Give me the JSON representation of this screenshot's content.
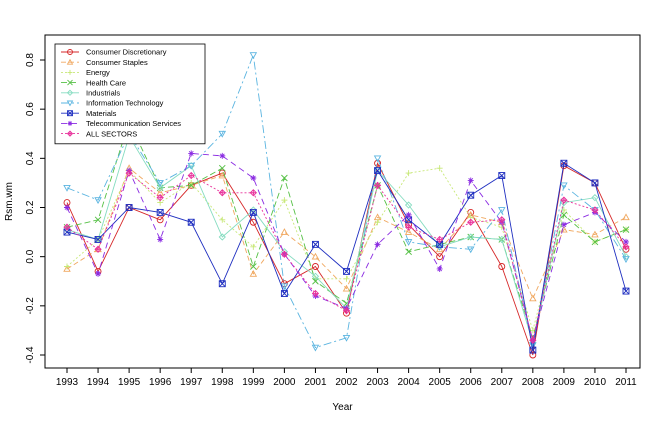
{
  "chart_data": {
    "type": "line",
    "title": "",
    "xlabel": "Year",
    "ylabel": "Rsm.wm",
    "x": [
      1993,
      1994,
      1995,
      1996,
      1997,
      1998,
      1999,
      2000,
      2001,
      2002,
      2003,
      2004,
      2005,
      2006,
      2007,
      2008,
      2009,
      2010,
      2011
    ],
    "ylim": [
      -0.4,
      0.8
    ],
    "yticks": [
      -0.4,
      -0.2,
      0.0,
      0.2,
      0.4,
      0.6,
      0.8
    ],
    "ytick_labels": [
      "-0.4",
      "-0.2",
      "0.0",
      "0.2",
      "0.4",
      "0.6",
      "0.8"
    ],
    "legend_position": "top-left",
    "series": [
      {
        "name": "Consumer Discretionary",
        "color": "#d62728",
        "dash": "",
        "marker": "circle",
        "values": [
          0.22,
          -0.06,
          0.2,
          0.15,
          0.29,
          0.34,
          0.14,
          -0.11,
          -0.04,
          -0.23,
          0.38,
          0.13,
          0.0,
          0.18,
          -0.04,
          -0.4,
          0.37,
          0.3,
          0.03
        ]
      },
      {
        "name": "Consumer Staples",
        "color": "#f0a860",
        "dash": "5,3",
        "marker": "triangle-up",
        "values": [
          -0.05,
          0.03,
          0.36,
          0.26,
          0.29,
          0.33,
          -0.07,
          0.1,
          0.0,
          -0.13,
          0.16,
          0.1,
          0.03,
          0.17,
          0.14,
          -0.17,
          0.11,
          0.09,
          0.16
        ]
      },
      {
        "name": "Energy",
        "color": "#c8e878",
        "dash": "2,2",
        "marker": "plus",
        "values": [
          -0.04,
          0.07,
          0.35,
          0.22,
          0.3,
          0.15,
          0.04,
          0.23,
          -0.09,
          -0.09,
          0.14,
          0.34,
          0.36,
          0.16,
          0.12,
          -0.3,
          0.19,
          0.06,
          0.11
        ]
      },
      {
        "name": "Health Care",
        "color": "#55c045",
        "dash": "6,3",
        "marker": "cross",
        "values": [
          0.12,
          0.15,
          0.55,
          0.28,
          0.29,
          0.36,
          -0.04,
          0.32,
          -0.1,
          -0.19,
          0.29,
          0.02,
          0.05,
          0.08,
          0.07,
          -0.33,
          0.17,
          0.06,
          0.11
        ]
      },
      {
        "name": "Industrials",
        "color": "#85dcc0",
        "dash": "",
        "marker": "diamond",
        "values": [
          0.11,
          0.07,
          0.49,
          0.28,
          0.37,
          0.08,
          0.19,
          0.02,
          -0.08,
          -0.21,
          0.35,
          0.21,
          0.04,
          0.08,
          0.07,
          -0.35,
          0.22,
          0.24,
          0.0
        ]
      },
      {
        "name": "Information Technology",
        "color": "#5ab4e0",
        "dash": "8,3,2,3",
        "marker": "triangle-down",
        "values": [
          0.28,
          0.23,
          0.5,
          0.3,
          0.37,
          0.5,
          0.82,
          -0.12,
          -0.37,
          -0.33,
          0.4,
          0.06,
          0.04,
          0.03,
          0.19,
          -0.36,
          0.29,
          0.19,
          -0.01
        ]
      },
      {
        "name": "Materials",
        "color": "#1f2fc0",
        "dash": "",
        "marker": "square-x",
        "values": [
          0.1,
          0.07,
          0.2,
          0.18,
          0.14,
          -0.11,
          0.18,
          -0.15,
          0.05,
          -0.06,
          0.35,
          0.15,
          0.05,
          0.25,
          0.33,
          -0.38,
          0.38,
          0.3,
          -0.14
        ]
      },
      {
        "name": "Telecommunication Services",
        "color": "#8a2be2",
        "dash": "6,4",
        "marker": "asterisk",
        "values": [
          0.2,
          -0.07,
          0.35,
          0.07,
          0.42,
          0.41,
          0.32,
          0.01,
          -0.16,
          -0.21,
          0.05,
          0.17,
          -0.05,
          0.31,
          0.14,
          -0.34,
          0.13,
          0.18,
          0.06
        ]
      },
      {
        "name": "ALL SECTORS",
        "color": "#e8309a",
        "dash": "2,2",
        "marker": "diamond-plus",
        "values": [
          0.12,
          0.03,
          0.34,
          0.24,
          0.33,
          0.26,
          0.26,
          0.01,
          -0.15,
          -0.22,
          0.29,
          0.12,
          0.07,
          0.14,
          0.15,
          -0.34,
          0.23,
          0.19,
          0.04
        ]
      }
    ]
  }
}
